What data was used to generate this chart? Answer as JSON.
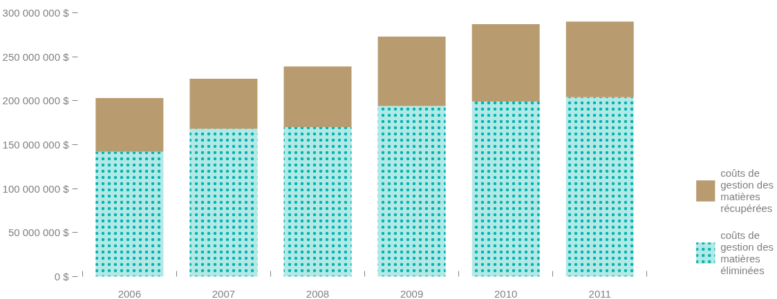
{
  "chart_data": {
    "type": "bar",
    "stacked": true,
    "categories": [
      "2006",
      "2007",
      "2008",
      "2009",
      "2010",
      "2011"
    ],
    "series": [
      {
        "name": "coûts de gestion des matières éliminées",
        "color": "#00b5b0",
        "values": [
          142000000,
          168000000,
          170000000,
          194000000,
          199000000,
          204000000
        ]
      },
      {
        "name": "coûts de gestion des matières récupérées",
        "color": "#b89b6f",
        "values": [
          61000000,
          57000000,
          69000000,
          79000000,
          88000000,
          86000000
        ]
      }
    ],
    "ylim": [
      0,
      300000000
    ],
    "yticks": [
      {
        "value": 0,
        "label": "0 $"
      },
      {
        "value": 50000000,
        "label": "50 000 000 $"
      },
      {
        "value": 100000000,
        "label": "100 000 000 $"
      },
      {
        "value": 150000000,
        "label": "150 000 000 $"
      },
      {
        "value": 200000000,
        "label": "200 000 000 $"
      },
      {
        "value": 250000000,
        "label": "250 000 000 $"
      },
      {
        "value": 300000000,
        "label": "300 000 000 $"
      }
    ],
    "grid": false,
    "legend": "right"
  }
}
